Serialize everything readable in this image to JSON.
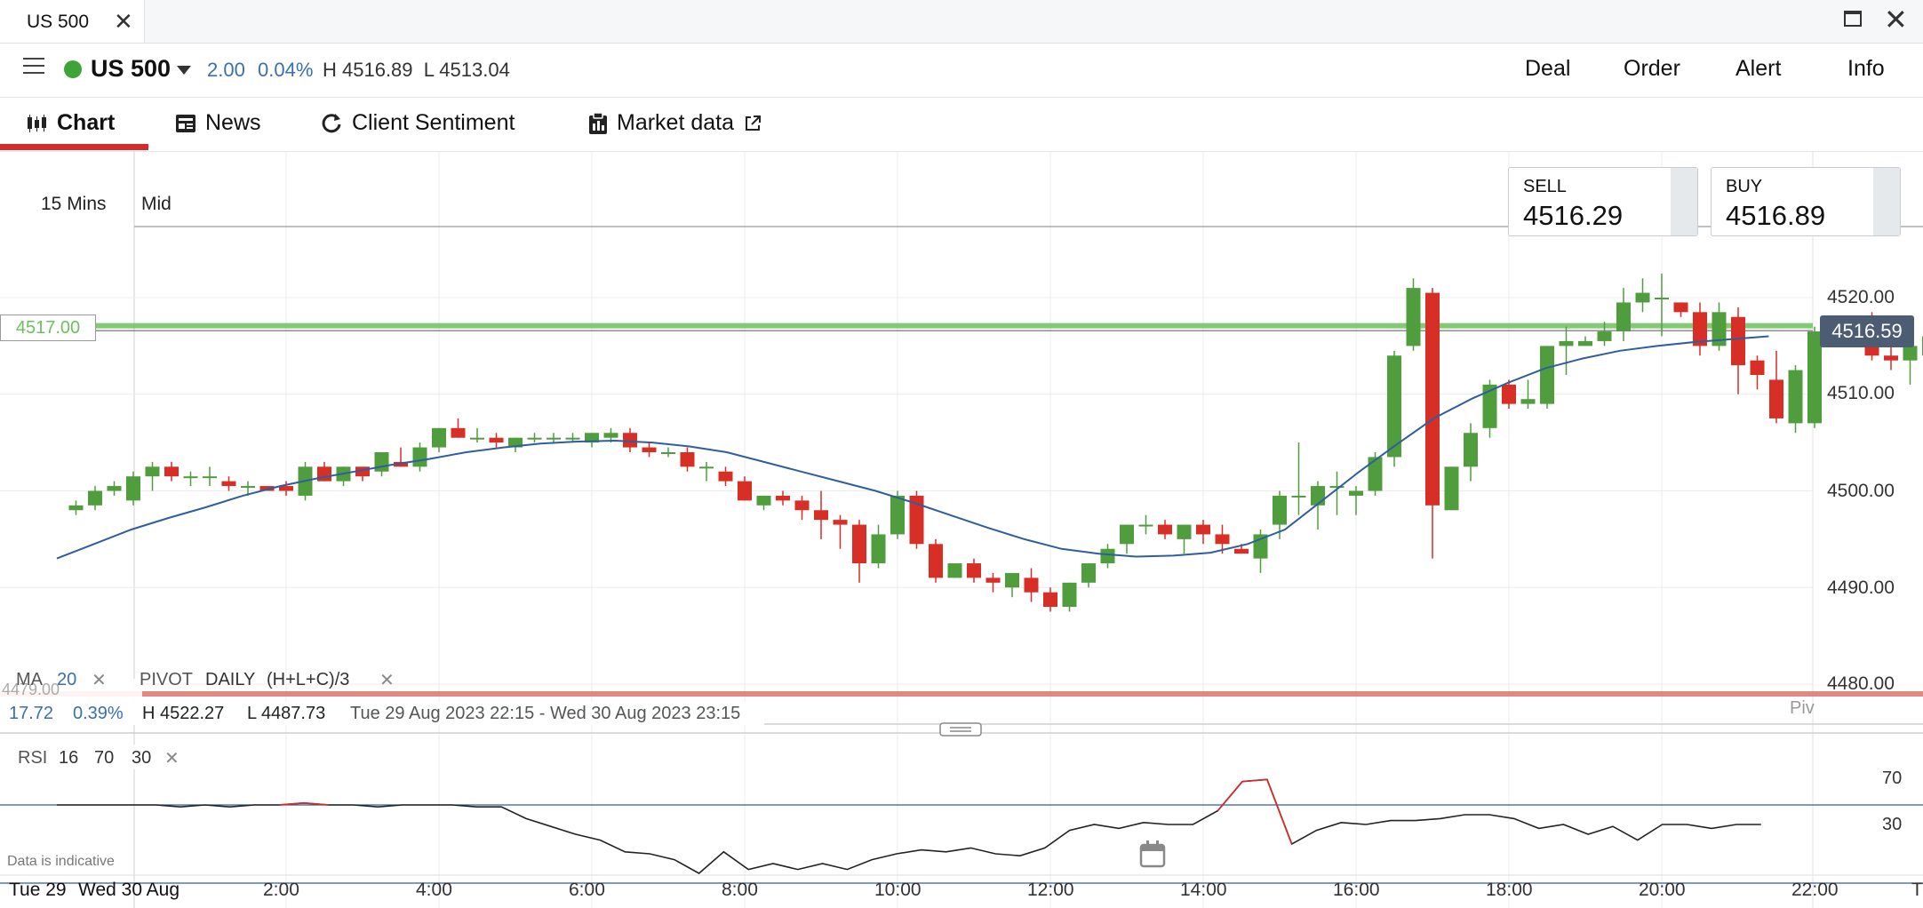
{
  "window": {
    "tab_title": "US 500",
    "tab_close": "✕",
    "close": "✕"
  },
  "header": {
    "market_name": "US 500",
    "change_abs": "2.00",
    "change_pct": "0.04%",
    "high_low": "H 4516.89  L 4513.04",
    "buttons": [
      "Deal",
      "Order",
      "Alert",
      "Info"
    ]
  },
  "tabs": [
    {
      "label": "Chart",
      "icon": "candlestick-icon"
    },
    {
      "label": "News",
      "icon": "newspaper-icon"
    },
    {
      "label": "Client Sentiment",
      "icon": "refresh-icon"
    },
    {
      "label": "Market data",
      "icon": "clipboard-icon"
    }
  ],
  "chart_controls": {
    "timeframe": "15 Mins",
    "price_mode": "Mid"
  },
  "quotes": {
    "sell_label": "SELL",
    "sell_value": "4516.29",
    "buy_label": "BUY",
    "buy_value": "4516.89"
  },
  "alert_line_label": "4517.00",
  "last_price_label": "4516.59",
  "overlay_bar": {
    "ma_label": "MA",
    "ma_period": "20",
    "pivot_label": "PIVOT",
    "pivot_period": "DAILY",
    "pivot_formula": "(H+L+C)/3",
    "close_glyph": "✕"
  },
  "range_info": {
    "change": "17.72",
    "change_pct": "0.39%",
    "high": "H 4522.27",
    "low": "L 4487.73",
    "period": "Tue 29 Aug 2023 22:15 - Wed 30 Aug 2023 23:15",
    "pivot_tag": "Piv",
    "hidden_price": "4479.00"
  },
  "rsi_bar": {
    "label": "RSI",
    "p1": "16",
    "p2": "70",
    "p3": "30",
    "close_glyph": "✕"
  },
  "footer": {
    "disclaimer": "Data is indicative",
    "date_start": "Tue 29",
    "date_next": "Wed 30 Aug",
    "edge_label": "T"
  },
  "colors": {
    "up": "#4f9d3d",
    "down": "#d72e25",
    "ma": "#2f5e9e",
    "alert": "#6ebf5e",
    "pivot": "#e07a74",
    "rsi": "#222222",
    "rsi_over": "#d22c2c"
  },
  "chart_data": {
    "type": "candlestick",
    "timeframe": "15 Mins",
    "x_tick_labels": [
      "2:00",
      "4:00",
      "6:00",
      "8:00",
      "10:00",
      "12:00",
      "14:00",
      "16:00",
      "18:00",
      "20:00",
      "22:00"
    ],
    "y_tick_labels": [
      "4520.00",
      "4510.00",
      "4500.00",
      "4490.00",
      "4480.00"
    ],
    "ylim": [
      4475,
      4530
    ],
    "candles": [
      [
        "23:15",
        4498.0,
        4499.0,
        4497.5,
        4498.5
      ],
      [
        "23:30",
        4498.5,
        4500.5,
        4498.0,
        4500.0
      ],
      [
        "23:45",
        4500.0,
        4501.0,
        4499.5,
        4500.5
      ],
      [
        "0:00",
        4499.0,
        4502.0,
        4498.5,
        4501.5
      ],
      [
        "0:15",
        4501.5,
        4503.0,
        4500.0,
        4502.5
      ],
      [
        "0:30",
        4502.5,
        4503.0,
        4501.0,
        4501.5
      ],
      [
        "0:45",
        4501.5,
        4502.0,
        4500.5,
        4501.5
      ],
      [
        "1:00",
        4501.5,
        4502.5,
        4500.5,
        4501.5
      ],
      [
        "1:15",
        4501.0,
        4501.5,
        4500.0,
        4500.5
      ],
      [
        "1:30",
        4500.5,
        4501.0,
        4499.5,
        4500.5
      ],
      [
        "1:45",
        4500.5,
        4500.5,
        4500.0,
        4500.0
      ],
      [
        "2:00",
        4500.5,
        4501.0,
        4499.5,
        4500.0
      ],
      [
        "2:15",
        4499.5,
        4503.0,
        4499.0,
        4502.5
      ],
      [
        "2:30",
        4502.5,
        4503.0,
        4501.0,
        4501.0
      ],
      [
        "2:45",
        4501.0,
        4502.5,
        4500.5,
        4502.5
      ],
      [
        "3:00",
        4502.5,
        4502.5,
        4501.0,
        4501.5
      ],
      [
        "3:15",
        4502.0,
        4504.0,
        4501.5,
        4504.0
      ],
      [
        "3:30",
        4503.0,
        4504.5,
        4502.5,
        4502.5
      ],
      [
        "3:45",
        4502.5,
        4505.0,
        4502.0,
        4504.5
      ],
      [
        "4:00",
        4504.5,
        4506.5,
        4504.0,
        4506.5
      ],
      [
        "4:15",
        4506.5,
        4507.5,
        4505.5,
        4505.5
      ],
      [
        "4:30",
        4505.5,
        4506.5,
        4505.0,
        4505.5
      ],
      [
        "4:45",
        4505.5,
        4506.0,
        4504.5,
        4505.0
      ],
      [
        "5:00",
        4504.5,
        4505.5,
        4504.0,
        4505.5
      ],
      [
        "5:15",
        4505.5,
        4506.0,
        4505.0,
        4505.5
      ],
      [
        "5:30",
        4505.5,
        4506.0,
        4505.0,
        4505.5
      ],
      [
        "5:45",
        4505.5,
        4506.0,
        4505.0,
        4505.5
      ],
      [
        "6:00",
        4505.0,
        4506.0,
        4504.5,
        4506.0
      ],
      [
        "6:15",
        4505.5,
        4506.5,
        4505.0,
        4506.0
      ],
      [
        "6:30",
        4506.0,
        4506.5,
        4504.0,
        4504.5
      ],
      [
        "6:45",
        4504.5,
        4505.0,
        4503.5,
        4504.0
      ],
      [
        "7:00",
        4504.0,
        4504.5,
        4503.5,
        4504.0
      ],
      [
        "7:15",
        4504.0,
        4504.5,
        4502.0,
        4502.5
      ],
      [
        "7:30",
        4502.5,
        4503.0,
        4501.0,
        4502.5
      ],
      [
        "7:45",
        4502.0,
        4502.5,
        4500.5,
        4501.0
      ],
      [
        "8:00",
        4501.0,
        4501.5,
        4499.0,
        4499.0
      ],
      [
        "8:15",
        4498.5,
        4499.5,
        4498.0,
        4499.5
      ],
      [
        "8:30",
        4499.5,
        4500.0,
        4498.5,
        4499.0
      ],
      [
        "8:45",
        4499.0,
        4499.5,
        4497.0,
        4498.0
      ],
      [
        "9:00",
        4498.0,
        4500.0,
        4495.0,
        4497.0
      ],
      [
        "9:15",
        4497.0,
        4497.5,
        4494.0,
        4496.5
      ],
      [
        "9:30",
        4496.5,
        4497.0,
        4490.5,
        4492.5
      ],
      [
        "9:45",
        4492.5,
        4496.5,
        4492.0,
        4495.5
      ],
      [
        "10:00",
        4495.5,
        4500.0,
        4495.0,
        4499.5
      ],
      [
        "10:15",
        4499.5,
        4500.0,
        4494.0,
        4494.5
      ],
      [
        "10:30",
        4494.5,
        4495.0,
        4490.5,
        4491.0
      ],
      [
        "10:45",
        4491.0,
        4492.5,
        4491.0,
        4492.5
      ],
      [
        "11:00",
        4492.5,
        4493.0,
        4490.5,
        4491.0
      ],
      [
        "11:15",
        4491.0,
        4491.5,
        4489.5,
        4490.5
      ],
      [
        "11:30",
        4490.0,
        4491.5,
        4489.0,
        4491.5
      ],
      [
        "11:45",
        4491.0,
        4492.0,
        4488.5,
        4489.5
      ],
      [
        "12:00",
        4489.5,
        4490.0,
        4487.5,
        4488.0
      ],
      [
        "12:15",
        4488.0,
        4490.5,
        4487.5,
        4490.5
      ],
      [
        "12:30",
        4490.5,
        4492.5,
        4490.0,
        4492.5
      ],
      [
        "12:45",
        4492.5,
        4494.5,
        4492.0,
        4494.0
      ],
      [
        "13:00",
        4494.5,
        4496.5,
        4493.5,
        4496.5
      ],
      [
        "13:15",
        4496.5,
        4497.5,
        4495.5,
        4496.5
      ],
      [
        "13:30",
        4496.5,
        4497.0,
        4495.0,
        4495.5
      ],
      [
        "13:45",
        4495.0,
        4496.5,
        4493.5,
        4496.5
      ],
      [
        "14:00",
        4496.5,
        4497.0,
        4494.5,
        4495.5
      ],
      [
        "14:15",
        4495.5,
        4496.5,
        4493.5,
        4494.5
      ],
      [
        "14:30",
        4494.0,
        4494.5,
        4493.5,
        4493.5
      ],
      [
        "14:45",
        4493.0,
        4496.0,
        4491.5,
        4495.5
      ],
      [
        "15:00",
        4496.5,
        4500.0,
        4495.0,
        4499.5
      ],
      [
        "15:15",
        4499.5,
        4505.0,
        4497.5,
        4499.5
      ],
      [
        "15:30",
        4498.5,
        4501.0,
        4496.0,
        4500.5
      ],
      [
        "15:45",
        4500.5,
        4502.0,
        4497.5,
        4500.5
      ],
      [
        "16:00",
        4499.5,
        4500.5,
        4497.5,
        4500.0
      ],
      [
        "16:15",
        4500.0,
        4504.0,
        4499.5,
        4503.5
      ],
      [
        "16:30",
        4503.5,
        4514.5,
        4502.5,
        4514.0
      ],
      [
        "16:45",
        4515.0,
        4522.0,
        4514.5,
        4521.0
      ],
      [
        "17:00",
        4520.5,
        4521.0,
        4493.0,
        4498.5
      ],
      [
        "17:15",
        4498.0,
        4502.5,
        4498.0,
        4502.5
      ],
      [
        "17:30",
        4502.5,
        4507.0,
        4501.0,
        4506.0
      ],
      [
        "17:45",
        4506.5,
        4511.5,
        4505.5,
        4511.0
      ],
      [
        "18:00",
        4511.0,
        4511.5,
        4508.5,
        4509.0
      ],
      [
        "18:15",
        4509.0,
        4511.5,
        4508.5,
        4509.5
      ],
      [
        "18:30",
        4509.0,
        4515.0,
        4508.5,
        4515.0
      ],
      [
        "18:45",
        4515.0,
        4517.0,
        4512.0,
        4515.5
      ],
      [
        "19:00",
        4515.0,
        4516.0,
        4515.0,
        4515.5
      ],
      [
        "19:15",
        4515.5,
        4517.5,
        4515.0,
        4516.5
      ],
      [
        "19:30",
        4516.5,
        4521.0,
        4515.5,
        4519.5
      ],
      [
        "19:45",
        4519.5,
        4522.0,
        4518.5,
        4520.5
      ],
      [
        "20:00",
        4520.0,
        4522.5,
        4516.0,
        4520.0
      ],
      [
        "20:15",
        4519.5,
        4519.5,
        4518.0,
        4518.5
      ],
      [
        "20:30",
        4518.5,
        4519.5,
        4514.0,
        4515.0
      ],
      [
        "20:45",
        4515.0,
        4519.5,
        4514.5,
        4518.5
      ],
      [
        "21:00",
        4518.0,
        4519.0,
        4510.0,
        4513.0
      ],
      [
        "21:15",
        4513.5,
        4514.0,
        4510.5,
        4512.0
      ],
      [
        "21:30",
        4511.5,
        4514.5,
        4507.0,
        4507.5
      ],
      [
        "21:45",
        4507.0,
        4513.0,
        4506.0,
        4512.5
      ],
      [
        "22:00",
        4507.0,
        4517.0,
        4506.5,
        4516.5
      ],
      [
        "22:15",
        4516.0,
        4517.5,
        4515.5,
        4516.5
      ],
      [
        "22:30",
        4517.0,
        4518.0,
        4515.5,
        4517.5
      ],
      [
        "22:45",
        4518.0,
        4518.5,
        4513.5,
        4514.0
      ],
      [
        "23:00",
        4514.0,
        4516.0,
        4512.5,
        4513.5
      ],
      [
        "23:15",
        4513.5,
        4515.5,
        4511.0,
        4515.0
      ],
      [
        "23:30",
        4514.0,
        4516.0,
        4513.0,
        4516.0
      ],
      [
        "23:45",
        4516.0,
        4517.0,
        4515.5,
        4516.5
      ]
    ],
    "moving_average": {
      "name": "MA 20",
      "values": [
        4493.0,
        4494.5,
        4496.0,
        4497.2,
        4498.3,
        4499.5,
        4500.5,
        4501.3,
        4502.0,
        4502.7,
        4503.3,
        4504.0,
        4504.5,
        4504.9,
        4505.1,
        4505.2,
        4505.0,
        4504.6,
        4504.0,
        4503.0,
        4502.0,
        4501.0,
        4500.0,
        4498.8,
        4497.5,
        4496.2,
        4495.0,
        4494.0,
        4493.5,
        4493.2,
        4493.3,
        4493.6,
        4494.5,
        4496.0,
        4499.0,
        4502.0,
        4504.8,
        4507.5,
        4509.5,
        4511.2,
        4512.7,
        4513.7,
        4514.5,
        4515.0,
        4515.4,
        4515.7,
        4516.0
      ]
    },
    "alert_level": 4517.0,
    "last_price": 4516.59,
    "rsi": {
      "period": 16,
      "upper": 70,
      "lower": 30,
      "values": [
        70,
        70,
        70,
        70,
        70,
        69,
        70,
        69,
        70,
        70,
        71,
        70,
        70,
        69,
        70,
        70,
        70,
        69,
        69,
        63,
        59,
        55,
        52,
        46,
        45,
        42,
        35,
        46,
        37,
        40,
        37,
        40,
        37,
        42,
        45,
        47,
        46,
        48,
        45,
        44,
        48,
        57,
        60,
        58,
        61,
        60,
        60,
        67,
        82,
        83,
        50,
        57,
        61,
        60,
        62,
        62,
        63,
        65,
        65,
        63,
        58,
        60,
        55,
        59,
        52,
        60,
        60,
        58,
        60,
        60
      ]
    },
    "rsi_ylim": [
      0,
      100
    ]
  }
}
